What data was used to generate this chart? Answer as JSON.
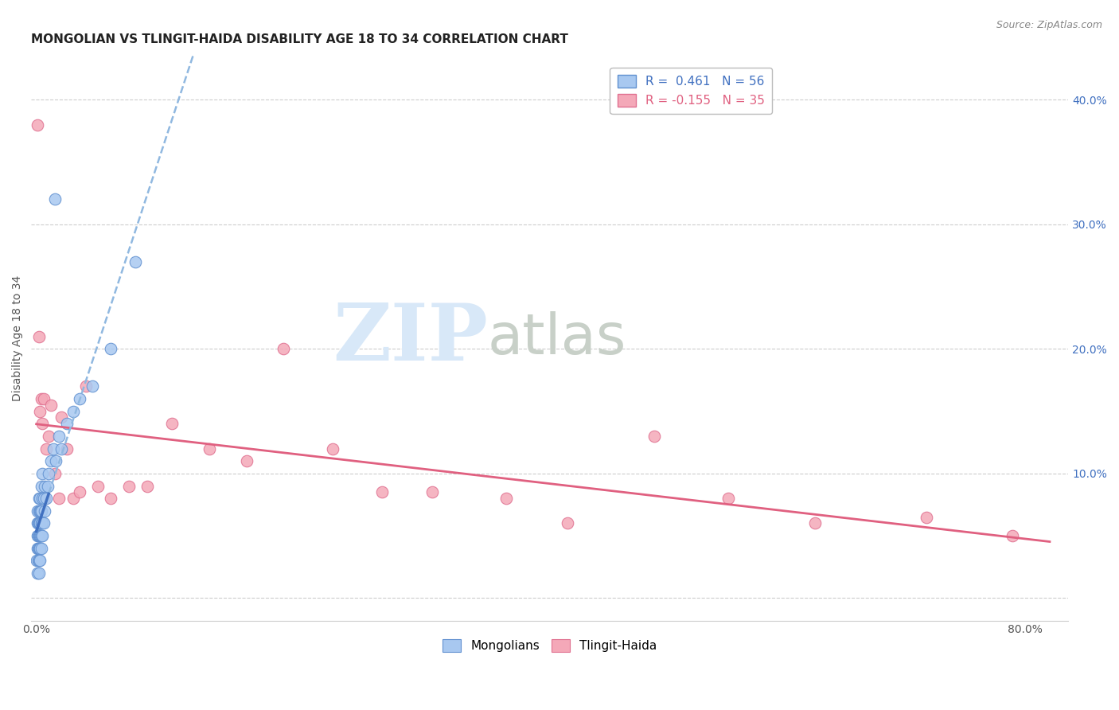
{
  "title": "MONGOLIAN VS TLINGIT-HAIDA DISABILITY AGE 18 TO 34 CORRELATION CHART",
  "source": "Source: ZipAtlas.com",
  "ylabel": "Disability Age 18 to 34",
  "xlabel": "",
  "xlim": [
    -0.004,
    0.835
  ],
  "ylim": [
    -0.018,
    0.435
  ],
  "xtick_vals": [
    0.0,
    0.1,
    0.2,
    0.3,
    0.4,
    0.5,
    0.6,
    0.7,
    0.8
  ],
  "xticklabels": [
    "0.0%",
    "",
    "",
    "",
    "",
    "",
    "",
    "",
    "80.0%"
  ],
  "ytick_vals": [
    0.0,
    0.1,
    0.2,
    0.3,
    0.4
  ],
  "yticklabels": [
    "",
    "10.0%",
    "20.0%",
    "30.0%",
    "40.0%"
  ],
  "mongolian_R": 0.461,
  "mongolian_N": 56,
  "tlingit_R": -0.155,
  "tlingit_N": 35,
  "mongolian_color": "#A8C8F0",
  "tlingit_color": "#F4A8B8",
  "mongolian_edge_color": "#6090D0",
  "tlingit_edge_color": "#E07090",
  "mongolian_line_color": "#4070C0",
  "tlingit_line_color": "#E06080",
  "mongolian_dash_color": "#90B8E0",
  "mongolian_x": [
    0.0005,
    0.001,
    0.001,
    0.001,
    0.001,
    0.001,
    0.0015,
    0.0015,
    0.0015,
    0.0015,
    0.002,
    0.002,
    0.002,
    0.002,
    0.002,
    0.002,
    0.002,
    0.0025,
    0.0025,
    0.0025,
    0.003,
    0.003,
    0.003,
    0.003,
    0.003,
    0.003,
    0.0035,
    0.0035,
    0.004,
    0.004,
    0.004,
    0.004,
    0.004,
    0.005,
    0.005,
    0.005,
    0.005,
    0.006,
    0.006,
    0.007,
    0.007,
    0.008,
    0.009,
    0.01,
    0.012,
    0.014,
    0.016,
    0.018,
    0.02,
    0.025,
    0.03,
    0.035,
    0.045,
    0.06,
    0.08,
    0.015
  ],
  "mongolian_y": [
    0.03,
    0.02,
    0.04,
    0.05,
    0.06,
    0.07,
    0.03,
    0.04,
    0.05,
    0.06,
    0.02,
    0.03,
    0.04,
    0.05,
    0.06,
    0.07,
    0.08,
    0.04,
    0.05,
    0.06,
    0.03,
    0.04,
    0.05,
    0.06,
    0.07,
    0.08,
    0.05,
    0.07,
    0.04,
    0.05,
    0.06,
    0.07,
    0.09,
    0.05,
    0.06,
    0.08,
    0.1,
    0.06,
    0.08,
    0.07,
    0.09,
    0.08,
    0.09,
    0.1,
    0.11,
    0.12,
    0.11,
    0.13,
    0.12,
    0.14,
    0.15,
    0.16,
    0.17,
    0.2,
    0.27,
    0.32
  ],
  "tlingit_x": [
    0.001,
    0.002,
    0.003,
    0.004,
    0.005,
    0.006,
    0.007,
    0.008,
    0.01,
    0.012,
    0.015,
    0.018,
    0.02,
    0.025,
    0.03,
    0.035,
    0.04,
    0.05,
    0.06,
    0.075,
    0.09,
    0.11,
    0.14,
    0.17,
    0.2,
    0.24,
    0.28,
    0.32,
    0.38,
    0.43,
    0.5,
    0.56,
    0.63,
    0.72,
    0.79
  ],
  "tlingit_y": [
    0.38,
    0.21,
    0.15,
    0.16,
    0.14,
    0.16,
    0.08,
    0.12,
    0.13,
    0.155,
    0.1,
    0.08,
    0.145,
    0.12,
    0.08,
    0.085,
    0.17,
    0.09,
    0.08,
    0.09,
    0.09,
    0.14,
    0.12,
    0.11,
    0.2,
    0.12,
    0.085,
    0.085,
    0.08,
    0.06,
    0.13,
    0.08,
    0.06,
    0.065,
    0.05
  ],
  "watermark_zip": "ZIP",
  "watermark_atlas": "atlas",
  "watermark_color": "#D8E8F8",
  "watermark_atlas_color": "#C8D0C8",
  "grid_color": "#CCCCCC",
  "background_color": "#FFFFFF",
  "title_fontsize": 11,
  "axis_label_fontsize": 10,
  "tick_fontsize": 10,
  "legend_fontsize": 11,
  "mon_line_x_solid_end": 0.01,
  "mon_line_x_dash_end": 0.28
}
